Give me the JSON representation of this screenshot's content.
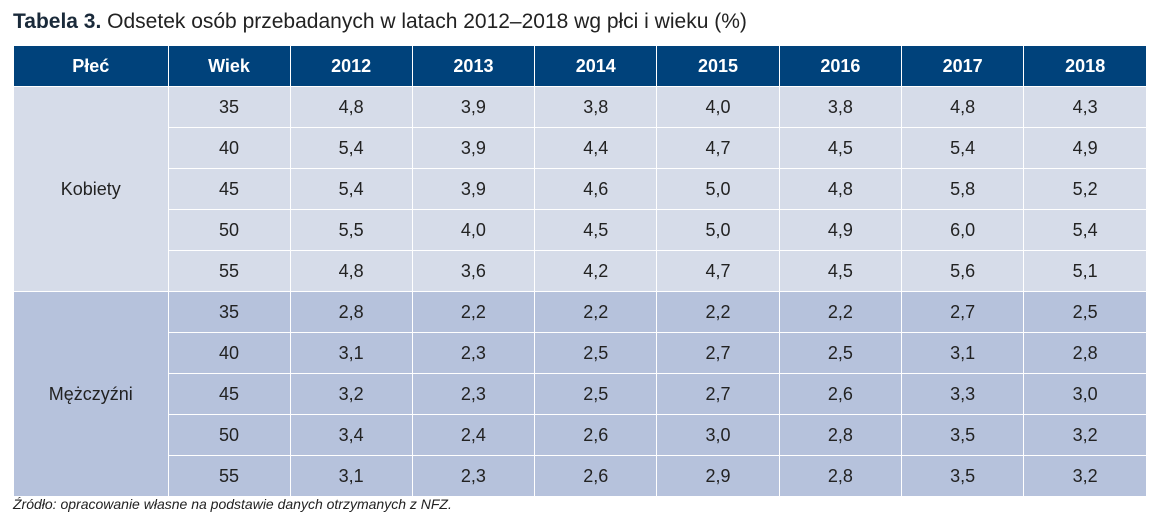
{
  "caption": {
    "label": "Tabela 3.",
    "text": " Odsetek osób przebadanych w latach 2012–2018 wg płci i wieku (%)"
  },
  "table": {
    "headers": [
      "Płeć",
      "Wiek",
      "2012",
      "2013",
      "2014",
      "2015",
      "2016",
      "2017",
      "2018"
    ],
    "groups": [
      {
        "label": "Kobiety",
        "rows": [
          {
            "age": "35",
            "values": [
              "4,8",
              "3,9",
              "3,8",
              "4,0",
              "3,8",
              "4,8",
              "4,3"
            ]
          },
          {
            "age": "40",
            "values": [
              "5,4",
              "3,9",
              "4,4",
              "4,7",
              "4,5",
              "5,4",
              "4,9"
            ]
          },
          {
            "age": "45",
            "values": [
              "5,4",
              "3,9",
              "4,6",
              "5,0",
              "4,8",
              "5,8",
              "5,2"
            ]
          },
          {
            "age": "50",
            "values": [
              "5,5",
              "4,0",
              "4,5",
              "5,0",
              "4,9",
              "6,0",
              "5,4"
            ]
          },
          {
            "age": "55",
            "values": [
              "4,8",
              "3,6",
              "4,2",
              "4,7",
              "4,5",
              "5,6",
              "5,1"
            ]
          }
        ]
      },
      {
        "label": "Mężczyźni",
        "rows": [
          {
            "age": "35",
            "values": [
              "2,8",
              "2,2",
              "2,2",
              "2,2",
              "2,2",
              "2,7",
              "2,5"
            ]
          },
          {
            "age": "40",
            "values": [
              "3,1",
              "2,3",
              "2,5",
              "2,7",
              "2,5",
              "3,1",
              "2,8"
            ]
          },
          {
            "age": "45",
            "values": [
              "3,2",
              "2,3",
              "2,5",
              "2,7",
              "2,6",
              "3,3",
              "3,0"
            ]
          },
          {
            "age": "50",
            "values": [
              "3,4",
              "2,4",
              "2,6",
              "3,0",
              "2,8",
              "3,5",
              "3,2"
            ]
          },
          {
            "age": "55",
            "values": [
              "3,1",
              "2,3",
              "2,6",
              "2,9",
              "2,8",
              "3,5",
              "3,2"
            ]
          }
        ]
      }
    ]
  },
  "source": "Źródło: opracowanie własne na podstawie danych otrzymanych z NFZ.",
  "colors": {
    "header_bg": "#00427b",
    "women_bg": "#d6dce9",
    "men_bg": "#b6c2dc"
  }
}
